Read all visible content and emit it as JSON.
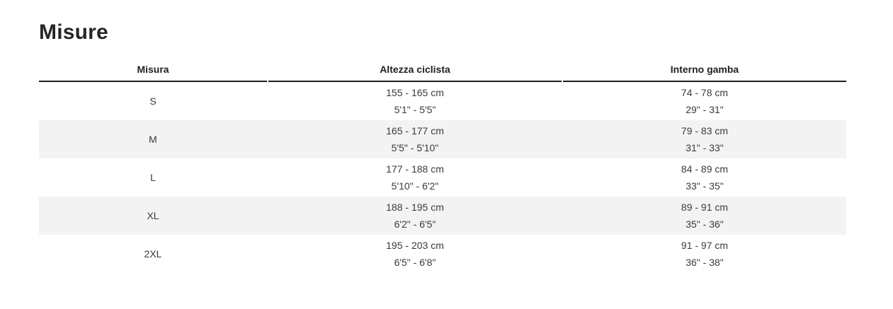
{
  "page": {
    "title": "Misure"
  },
  "table": {
    "columns": [
      {
        "label": "Misura"
      },
      {
        "label": "Altezza ciclista"
      },
      {
        "label": "Interno gamba"
      }
    ],
    "rows": [
      {
        "size": "S",
        "height_cm": "155 - 165 cm",
        "height_imperial": "5'1\" - 5'5\"",
        "inseam_cm": "74 - 78 cm",
        "inseam_imperial": "29\" - 31\""
      },
      {
        "size": "M",
        "height_cm": "165 - 177 cm",
        "height_imperial": "5'5\" - 5'10\"",
        "inseam_cm": "79 - 83 cm",
        "inseam_imperial": "31\" - 33\""
      },
      {
        "size": "L",
        "height_cm": "177 - 188 cm",
        "height_imperial": "5'10\" - 6'2\"",
        "inseam_cm": "84 - 89 cm",
        "inseam_imperial": "33\" - 35\""
      },
      {
        "size": "XL",
        "height_cm": "188 - 195 cm",
        "height_imperial": "6'2\" - 6'5\"",
        "inseam_cm": "89 - 91 cm",
        "inseam_imperial": "35\" - 36\""
      },
      {
        "size": "2XL",
        "height_cm": "195 - 203 cm",
        "height_imperial": "6'5\" - 6'8\"",
        "inseam_cm": "91 - 97 cm",
        "inseam_imperial": "36\" - 38\""
      }
    ],
    "colors": {
      "title_text": "#262626",
      "header_text": "#212121",
      "header_border": "#1c1c1c",
      "body_text": "#3a3a3a",
      "row_alt_bg": "#f3f3f3",
      "page_bg": "#ffffff"
    }
  }
}
